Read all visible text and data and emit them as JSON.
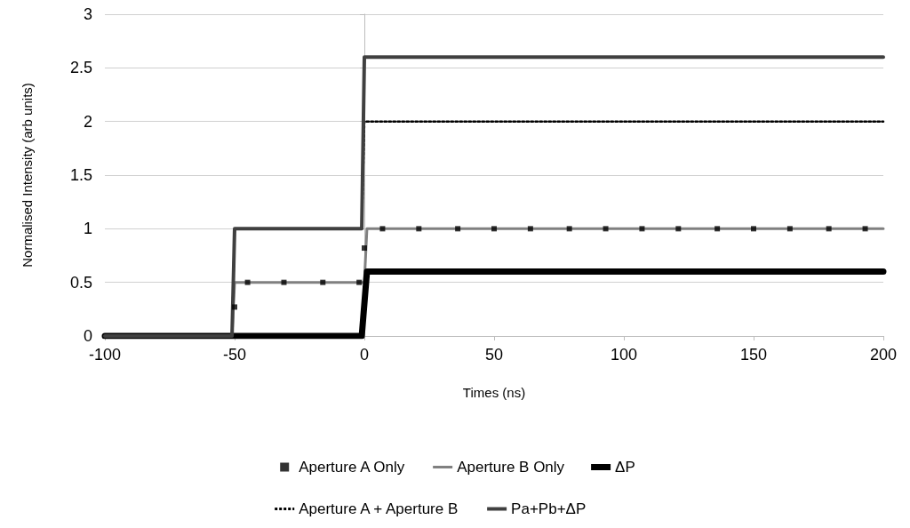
{
  "chart_data": {
    "type": "line",
    "xlabel": "Times (ns)",
    "ylabel": "Normalised Intensity (arb units)",
    "xlim": [
      -100,
      200
    ],
    "xticks": [
      -100,
      -50,
      0,
      50,
      100,
      150,
      200
    ],
    "ylim": [
      0,
      3
    ],
    "yticks": [
      0,
      0.5,
      1,
      1.5,
      2,
      2.5,
      3
    ],
    "grid": "y",
    "legend": "bottom",
    "series": [
      {
        "name": "Aperture A Only",
        "type": "scatter",
        "marker": "square",
        "color": "#000000",
        "x": [
          -50,
          -45,
          -31,
          -16,
          -2,
          0,
          7,
          21,
          36,
          50,
          64,
          79,
          93,
          107,
          121,
          136,
          150,
          164,
          179,
          193
        ],
        "values": [
          0.27,
          0.5,
          0.5,
          0.5,
          0.5,
          0.82,
          1,
          1,
          1,
          1,
          1,
          1,
          1,
          1,
          1,
          1,
          1,
          1,
          1,
          1
        ]
      },
      {
        "name": "Aperture B Only",
        "color": "#808080",
        "line_style": "solid",
        "marker": "none",
        "x": [
          -100,
          -51,
          -50,
          0,
          1,
          200
        ],
        "values": [
          0,
          0,
          0.5,
          0.5,
          1,
          1
        ]
      },
      {
        "name": "ΔP",
        "color": "#000000",
        "line_style": "solid",
        "marker": "none",
        "x": [
          -100,
          -1,
          1,
          200
        ],
        "values": [
          0,
          0,
          0.6,
          0.6
        ]
      },
      {
        "name": "Aperture A + Aperture B",
        "color": "#000000",
        "line_style": "dotted",
        "marker": "none",
        "x": [
          -100,
          -51,
          -50,
          -1,
          0,
          200
        ],
        "values": [
          0,
          0,
          1,
          1,
          2,
          2
        ]
      },
      {
        "name": "Pa+Pb+ΔP",
        "color": "#404040",
        "line_style": "solid",
        "marker": "none",
        "x": [
          -100,
          -51,
          -50,
          -1,
          0,
          200
        ],
        "values": [
          0,
          0,
          1,
          1,
          2.6,
          2.6
        ]
      }
    ]
  }
}
